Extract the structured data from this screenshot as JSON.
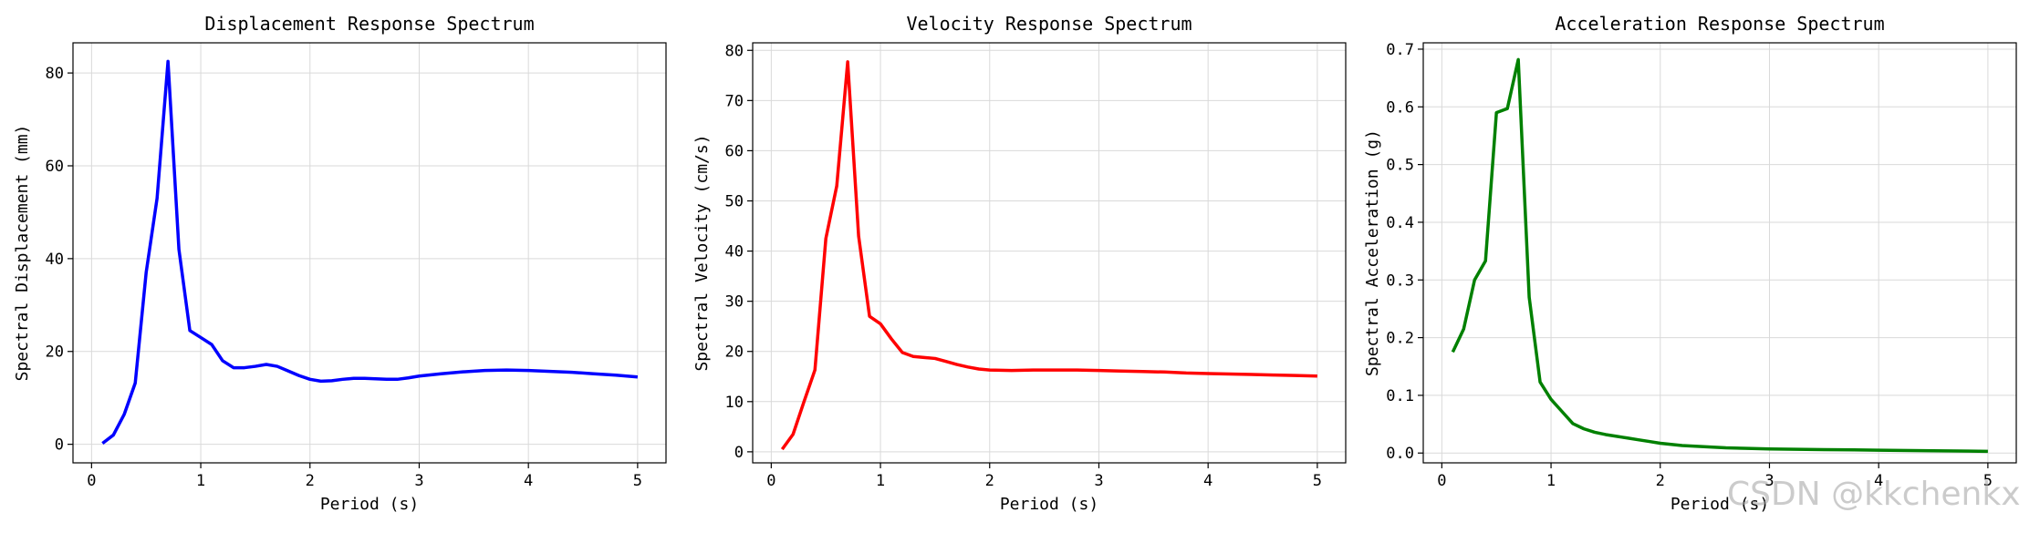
{
  "chart_data": [
    {
      "type": "line",
      "title": "Displacement Response Spectrum",
      "xlabel": "Period (s)",
      "ylabel": "Spectral Displacement (mm)",
      "xlim": [
        -0.17,
        5.26
      ],
      "ylim": [
        -4,
        86.5
      ],
      "xticks": [
        0,
        1,
        2,
        3,
        4,
        5
      ],
      "yticks": [
        0,
        20,
        40,
        60,
        80
      ],
      "tick_labels": [
        "0",
        "20",
        "40",
        "60",
        "80"
      ],
      "x_tick_labels": [
        "0",
        "1",
        "2",
        "3",
        "4",
        "5"
      ],
      "color": "#0000ff",
      "series": [
        {
          "name": "Displacement",
          "x": [
            0.1,
            0.2,
            0.3,
            0.4,
            0.5,
            0.6,
            0.7,
            0.8,
            0.9,
            1.0,
            1.1,
            1.2,
            1.3,
            1.4,
            1.5,
            1.6,
            1.7,
            1.8,
            1.9,
            2.0,
            2.1,
            2.2,
            2.3,
            2.4,
            2.5,
            2.6,
            2.7,
            2.8,
            2.9,
            3.0,
            3.2,
            3.4,
            3.6,
            3.8,
            4.0,
            4.2,
            4.4,
            4.6,
            4.8,
            5.0
          ],
          "values": [
            0.2,
            2.0,
            6.5,
            13.2,
            37.0,
            53.0,
            82.5,
            42.0,
            24.5,
            23.0,
            21.5,
            18.0,
            16.5,
            16.5,
            16.8,
            17.2,
            16.8,
            15.8,
            14.8,
            14.0,
            13.6,
            13.7,
            14.0,
            14.2,
            14.2,
            14.1,
            14.0,
            14.0,
            14.3,
            14.7,
            15.2,
            15.6,
            15.9,
            16.0,
            15.9,
            15.7,
            15.5,
            15.2,
            14.9,
            14.5
          ]
        }
      ]
    },
    {
      "type": "line",
      "title": "Velocity Response Spectrum",
      "xlabel": "Period (s)",
      "ylabel": "Spectral Velocity (cm/s)",
      "xlim": [
        -0.17,
        5.26
      ],
      "ylim": [
        -2.2,
        81.5
      ],
      "xticks": [
        0,
        1,
        2,
        3,
        4,
        5
      ],
      "yticks": [
        0,
        10,
        20,
        30,
        40,
        50,
        60,
        70,
        80
      ],
      "tick_labels": [
        "0",
        "10",
        "20",
        "30",
        "40",
        "50",
        "60",
        "70",
        "80"
      ],
      "x_tick_labels": [
        "0",
        "1",
        "2",
        "3",
        "4",
        "5"
      ],
      "color": "#ff0000",
      "series": [
        {
          "name": "Velocity",
          "x": [
            0.1,
            0.2,
            0.3,
            0.4,
            0.5,
            0.6,
            0.7,
            0.8,
            0.9,
            1.0,
            1.1,
            1.2,
            1.3,
            1.4,
            1.5,
            1.6,
            1.7,
            1.8,
            1.9,
            2.0,
            2.2,
            2.4,
            2.6,
            2.8,
            3.0,
            3.2,
            3.4,
            3.6,
            3.8,
            4.0,
            4.2,
            4.4,
            4.6,
            4.8,
            5.0
          ],
          "values": [
            0.5,
            3.5,
            10.0,
            16.3,
            42.5,
            53.0,
            77.7,
            43.0,
            27.0,
            25.5,
            22.5,
            19.8,
            19.0,
            18.8,
            18.6,
            18.0,
            17.4,
            16.9,
            16.5,
            16.3,
            16.2,
            16.3,
            16.3,
            16.3,
            16.2,
            16.1,
            16.0,
            15.9,
            15.7,
            15.6,
            15.5,
            15.4,
            15.3,
            15.2,
            15.1
          ]
        }
      ]
    },
    {
      "type": "line",
      "title": "Acceleration Response Spectrum",
      "xlabel": "Period (s)",
      "ylabel": "Spectral Acceleration (g)",
      "xlim": [
        -0.17,
        5.26
      ],
      "ylim": [
        -0.017,
        0.711
      ],
      "xticks": [
        0,
        1,
        2,
        3,
        4,
        5
      ],
      "yticks": [
        0.0,
        0.1,
        0.2,
        0.3,
        0.4,
        0.5,
        0.6,
        0.7
      ],
      "tick_labels": [
        "0.0",
        "0.1",
        "0.2",
        "0.3",
        "0.4",
        "0.5",
        "0.6",
        "0.7"
      ],
      "x_tick_labels": [
        "0",
        "1",
        "2",
        "3",
        "4",
        "5"
      ],
      "color": "#008000",
      "series": [
        {
          "name": "Acceleration",
          "x": [
            0.1,
            0.2,
            0.3,
            0.4,
            0.5,
            0.6,
            0.7,
            0.8,
            0.9,
            1.0,
            1.1,
            1.2,
            1.3,
            1.4,
            1.5,
            1.6,
            1.7,
            1.8,
            1.9,
            2.0,
            2.2,
            2.4,
            2.6,
            2.8,
            3.0,
            3.5,
            4.0,
            4.5,
            5.0
          ],
          "values": [
            0.175,
            0.215,
            0.3,
            0.333,
            0.59,
            0.597,
            0.682,
            0.27,
            0.123,
            0.093,
            0.072,
            0.051,
            0.042,
            0.036,
            0.032,
            0.029,
            0.026,
            0.023,
            0.02,
            0.017,
            0.013,
            0.011,
            0.009,
            0.008,
            0.007,
            0.006,
            0.005,
            0.004,
            0.003
          ]
        }
      ]
    }
  ],
  "watermark": "CSDN @kkchenkx"
}
